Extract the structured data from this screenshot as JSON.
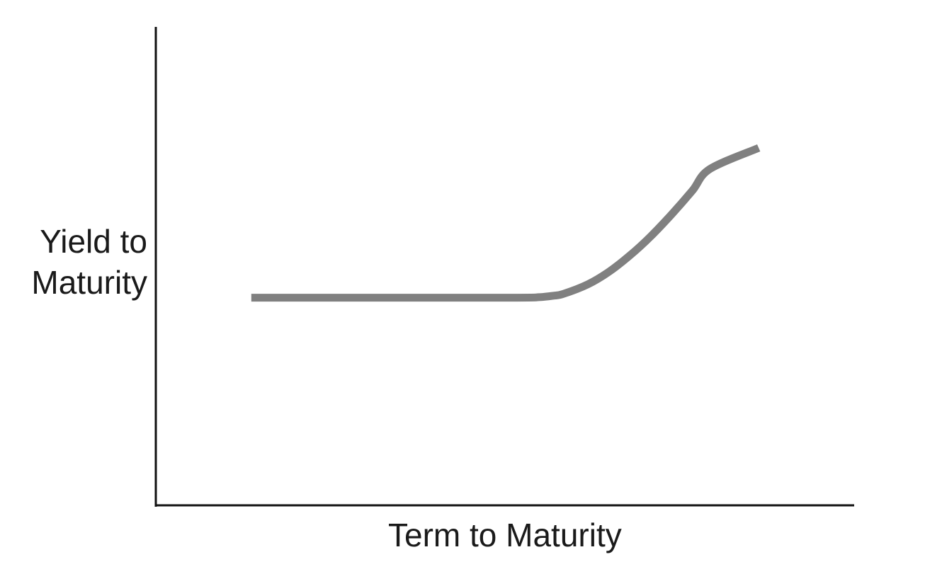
{
  "chart_data": {
    "type": "line",
    "title": "",
    "xlabel": "Term to Maturity",
    "ylabel_lines": [
      "Yield to",
      "Maturity"
    ],
    "x_ticks_shown": false,
    "y_ticks_shown": false,
    "grid": false,
    "legend": "none",
    "xlim": [
      0,
      100
    ],
    "ylim": [
      0,
      100
    ],
    "series": [
      {
        "color": "#808080",
        "x": [
          13.7,
          35,
          52,
          55,
          57,
          58.5,
          62,
          65,
          68,
          71,
          74,
          77,
          79.5,
          86.5
        ],
        "y": [
          43.4,
          43.4,
          43.4,
          43.5,
          43.8,
          44.2,
          46.2,
          48.8,
          52.2,
          56.2,
          60.8,
          65.8,
          70.3,
          74.7
        ]
      }
    ]
  }
}
